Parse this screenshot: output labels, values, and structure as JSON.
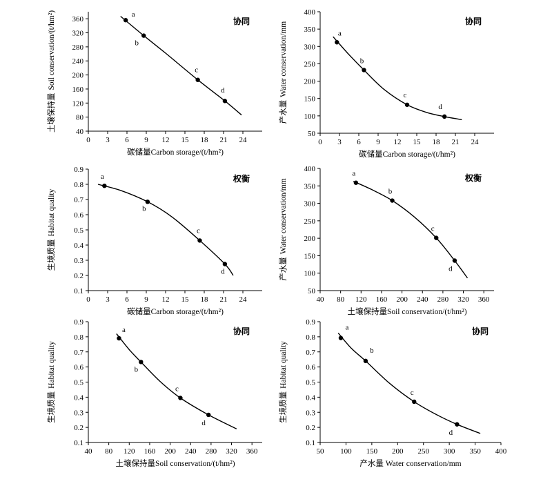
{
  "chart_data": [
    {
      "type": "scatter",
      "tag": "协同",
      "xlabel": "碳储量Carbon storage/(t/hm²)",
      "ylabel_cn": "土壤保持量",
      "ylabel_en": "Soil conservation/(t/hm²)",
      "xlim": [
        0,
        27
      ],
      "ylim": [
        40,
        380
      ],
      "xticks": [
        0,
        3,
        6,
        9,
        12,
        15,
        18,
        21,
        24
      ],
      "yticks": [
        40,
        80,
        120,
        160,
        200,
        240,
        280,
        320,
        360
      ],
      "points": [
        {
          "label": "a",
          "x": 5.8,
          "y": 356
        },
        {
          "label": "b",
          "x": 8.6,
          "y": 312
        },
        {
          "label": "c",
          "x": 17.0,
          "y": 186
        },
        {
          "label": "d",
          "x": 21.2,
          "y": 126
        }
      ],
      "curve": [
        [
          5.0,
          367
        ],
        [
          8.6,
          312
        ],
        [
          12.0,
          262
        ],
        [
          17.0,
          186
        ],
        [
          21.2,
          126
        ],
        [
          23.8,
          86
        ]
      ]
    },
    {
      "type": "scatter",
      "tag": "协同",
      "xlabel": "碳储量Carbon storage/(t/hm²)",
      "ylabel_cn": "产水量",
      "ylabel_en": "Water conservation/mm",
      "xlim": [
        0,
        27
      ],
      "ylim": [
        50,
        400
      ],
      "xticks": [
        0,
        3,
        6,
        9,
        12,
        15,
        18,
        21,
        24
      ],
      "yticks": [
        50,
        100,
        150,
        200,
        250,
        300,
        350,
        400
      ],
      "points": [
        {
          "label": "a",
          "x": 2.6,
          "y": 312
        },
        {
          "label": "b",
          "x": 6.8,
          "y": 232
        },
        {
          "label": "c",
          "x": 13.5,
          "y": 132
        },
        {
          "label": "d",
          "x": 19.3,
          "y": 98
        }
      ],
      "curve": [
        [
          2.0,
          328
        ],
        [
          4.5,
          276
        ],
        [
          6.8,
          232
        ],
        [
          10.0,
          175
        ],
        [
          13.5,
          132
        ],
        [
          16.5,
          110
        ],
        [
          19.3,
          98
        ],
        [
          22.0,
          89
        ]
      ]
    },
    {
      "type": "scatter",
      "tag": "权衡",
      "xlabel": "碳储量Carbon storage/(t/hm²)",
      "ylabel_cn": "生境质量",
      "ylabel_en": "Habitat quality",
      "xlim": [
        0,
        27
      ],
      "ylim": [
        0.1,
        0.9
      ],
      "xticks": [
        0,
        3,
        6,
        9,
        12,
        15,
        18,
        21,
        24
      ],
      "yticks": [
        0.1,
        0.2,
        0.3,
        0.4,
        0.5,
        0.6,
        0.7,
        0.8,
        0.9
      ],
      "points": [
        {
          "label": "a",
          "x": 2.5,
          "y": 0.79
        },
        {
          "label": "b",
          "x": 9.2,
          "y": 0.685
        },
        {
          "label": "c",
          "x": 17.3,
          "y": 0.43
        },
        {
          "label": "d",
          "x": 21.2,
          "y": 0.275
        }
      ],
      "curve": [
        [
          1.5,
          0.8
        ],
        [
          5.0,
          0.76
        ],
        [
          9.2,
          0.685
        ],
        [
          13.0,
          0.585
        ],
        [
          17.3,
          0.43
        ],
        [
          21.2,
          0.275
        ],
        [
          22.5,
          0.2
        ]
      ]
    },
    {
      "type": "scatter",
      "tag": "权衡",
      "xlabel": "土壤保持量Soil conservation/(t/hm²)",
      "ylabel_cn": "产水量",
      "ylabel_en": "Water conservation/mm",
      "xlim": [
        40,
        380
      ],
      "ylim": [
        50,
        400
      ],
      "xticks": [
        40,
        80,
        120,
        160,
        200,
        240,
        280,
        320,
        360
      ],
      "yticks": [
        50,
        100,
        150,
        200,
        250,
        300,
        350,
        400
      ],
      "points": [
        {
          "label": "a",
          "x": 110,
          "y": 359
        },
        {
          "label": "b",
          "x": 181,
          "y": 308
        },
        {
          "label": "c",
          "x": 267,
          "y": 201
        },
        {
          "label": "d",
          "x": 303,
          "y": 136
        }
      ],
      "curve": [
        [
          105,
          363
        ],
        [
          140,
          340
        ],
        [
          181,
          308
        ],
        [
          225,
          260
        ],
        [
          267,
          201
        ],
        [
          303,
          136
        ],
        [
          328,
          86
        ]
      ]
    },
    {
      "type": "scatter",
      "tag": "协同",
      "xlabel": "土壤保持量Soil conservation/(t/hm²)",
      "ylabel_cn": "生境质量",
      "ylabel_en": "Habitat quality",
      "xlim": [
        40,
        380
      ],
      "ylim": [
        0.1,
        0.9
      ],
      "xticks": [
        40,
        80,
        120,
        160,
        200,
        240,
        280,
        320,
        360
      ],
      "yticks": [
        0.1,
        0.2,
        0.3,
        0.4,
        0.5,
        0.6,
        0.7,
        0.8,
        0.9
      ],
      "points": [
        {
          "label": "a",
          "x": 100,
          "y": 0.79
        },
        {
          "label": "b",
          "x": 143,
          "y": 0.633
        },
        {
          "label": "c",
          "x": 220,
          "y": 0.395
        },
        {
          "label": "d",
          "x": 275,
          "y": 0.283
        }
      ],
      "curve": [
        [
          95,
          0.82
        ],
        [
          120,
          0.715
        ],
        [
          143,
          0.633
        ],
        [
          180,
          0.505
        ],
        [
          220,
          0.395
        ],
        [
          275,
          0.283
        ],
        [
          330,
          0.19
        ]
      ]
    },
    {
      "type": "scatter",
      "tag": "协同",
      "xlabel": "产水量 Water conservation/mm",
      "ylabel_cn": "生境质量",
      "ylabel_en": "Habitat quality",
      "xlim": [
        50,
        400
      ],
      "ylim": [
        0.1,
        0.9
      ],
      "xticks": [
        50,
        100,
        150,
        200,
        250,
        300,
        350,
        400
      ],
      "yticks": [
        0.1,
        0.2,
        0.3,
        0.4,
        0.5,
        0.6,
        0.7,
        0.8,
        0.9
      ],
      "points": [
        {
          "label": "a",
          "x": 90,
          "y": 0.792
        },
        {
          "label": "b",
          "x": 138,
          "y": 0.64
        },
        {
          "label": "c",
          "x": 232,
          "y": 0.37
        },
        {
          "label": "d",
          "x": 315,
          "y": 0.22
        }
      ],
      "curve": [
        [
          85,
          0.825
        ],
        [
          110,
          0.725
        ],
        [
          138,
          0.64
        ],
        [
          185,
          0.49
        ],
        [
          232,
          0.37
        ],
        [
          275,
          0.285
        ],
        [
          315,
          0.22
        ],
        [
          360,
          0.16
        ]
      ]
    }
  ]
}
